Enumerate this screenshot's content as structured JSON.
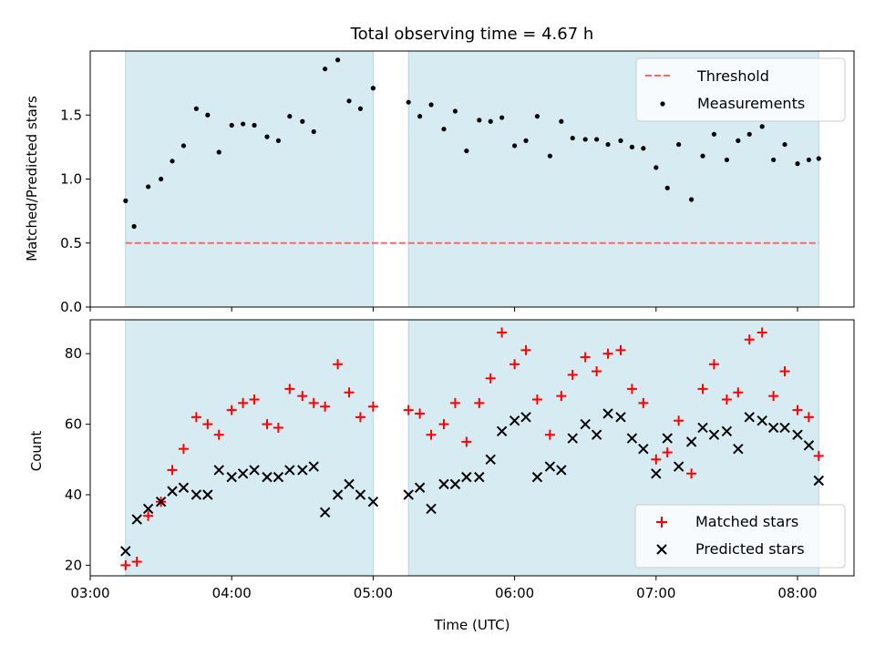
{
  "chart_data": [
    {
      "type": "scatter",
      "title": "Total observing time = 4.67 h",
      "ylabel": "Matched/Predicted stars",
      "xlabel": "",
      "xlim": [
        3.0,
        8.4
      ],
      "ylim": [
        0,
        2.0
      ],
      "yticks": [
        0.0,
        0.5,
        1.0,
        1.5
      ],
      "ytick_labels": [
        "0.0",
        "0.5",
        "1.0",
        "1.5"
      ],
      "xticks": [
        3,
        4,
        5,
        6,
        7,
        8
      ],
      "shaded_intervals": [
        [
          3.25,
          5.0
        ],
        [
          5.25,
          8.15
        ]
      ],
      "shade_color": "#add8e6",
      "threshold": {
        "name": "Threshold",
        "value": 0.5,
        "x_range": [
          3.25,
          8.15
        ],
        "color": "#ff6666"
      },
      "legend": {
        "placement": "upper right",
        "entries": [
          "Threshold",
          "Measurements"
        ]
      },
      "series": [
        {
          "name": "Measurements",
          "color": "#000000",
          "x": [
            3.25,
            3.31,
            3.41,
            3.5,
            3.58,
            3.66,
            3.75,
            3.83,
            3.91,
            4.0,
            4.08,
            4.16,
            4.25,
            4.33,
            4.41,
            4.5,
            4.58,
            4.66,
            4.75,
            4.83,
            4.91,
            5.0,
            5.25,
            5.33,
            5.41,
            5.5,
            5.58,
            5.66,
            5.75,
            5.83,
            5.91,
            6.0,
            6.08,
            6.16,
            6.25,
            6.33,
            6.41,
            6.5,
            6.58,
            6.66,
            6.75,
            6.83,
            6.91,
            7.0,
            7.08,
            7.16,
            7.25,
            7.33,
            7.41,
            7.5,
            7.58,
            7.66,
            7.75,
            7.83,
            7.91,
            8.0,
            8.08,
            8.15
          ],
          "y": [
            0.83,
            0.63,
            0.94,
            1.0,
            1.14,
            1.26,
            1.55,
            1.5,
            1.21,
            1.42,
            1.43,
            1.42,
            1.33,
            1.3,
            1.49,
            1.45,
            1.37,
            1.86,
            1.93,
            1.61,
            1.55,
            1.71,
            1.6,
            1.49,
            1.58,
            1.39,
            1.53,
            1.22,
            1.46,
            1.45,
            1.48,
            1.26,
            1.3,
            1.49,
            1.18,
            1.45,
            1.32,
            1.31,
            1.31,
            1.27,
            1.3,
            1.25,
            1.24,
            1.09,
            0.93,
            1.27,
            0.84,
            1.18,
            1.35,
            1.15,
            1.3,
            1.35,
            1.41,
            1.15,
            1.27,
            1.12,
            1.15,
            1.16
          ]
        }
      ]
    },
    {
      "type": "scatter",
      "title": "",
      "xlabel": "Time (UTC)",
      "ylabel": "Count",
      "xlim": [
        3.0,
        8.4
      ],
      "ylim": [
        17,
        90
      ],
      "yticks": [
        20,
        40,
        60,
        80
      ],
      "ytick_labels": [
        "20",
        "40",
        "60",
        "80"
      ],
      "xticks": [
        3,
        4,
        5,
        6,
        7,
        8
      ],
      "xtick_labels": [
        "03:00",
        "04:00",
        "05:00",
        "06:00",
        "07:00",
        "08:00"
      ],
      "shaded_intervals": [
        [
          3.25,
          5.0
        ],
        [
          5.25,
          8.15
        ]
      ],
      "shade_color": "#add8e6",
      "legend": {
        "placement": "lower right",
        "entries": [
          "Matched stars",
          "Predicted stars"
        ]
      },
      "series": [
        {
          "name": "Matched stars",
          "marker": "+",
          "color": "#ff0000",
          "x": [
            3.25,
            3.33,
            3.41,
            3.5,
            3.58,
            3.66,
            3.75,
            3.83,
            3.91,
            4.0,
            4.08,
            4.16,
            4.25,
            4.33,
            4.41,
            4.5,
            4.58,
            4.66,
            4.75,
            4.83,
            4.91,
            5.0,
            5.25,
            5.33,
            5.41,
            5.5,
            5.58,
            5.66,
            5.75,
            5.83,
            5.91,
            6.0,
            6.08,
            6.16,
            6.25,
            6.33,
            6.41,
            6.5,
            6.58,
            6.66,
            6.75,
            6.83,
            6.91,
            7.0,
            7.08,
            7.16,
            7.25,
            7.33,
            7.41,
            7.5,
            7.58,
            7.66,
            7.75,
            7.83,
            7.91,
            8.0,
            8.08,
            8.15
          ],
          "y": [
            20,
            21,
            34,
            38,
            47,
            53,
            62,
            60,
            57,
            64,
            66,
            67,
            60,
            59,
            70,
            68,
            66,
            65,
            77,
            69,
            62,
            65,
            64,
            63,
            57,
            60,
            66,
            55,
            66,
            73,
            86,
            77,
            81,
            67,
            57,
            68,
            74,
            79,
            75,
            80,
            81,
            70,
            66,
            50,
            52,
            61,
            46,
            70,
            77,
            67,
            69,
            84,
            86,
            68,
            75,
            64,
            62,
            51
          ]
        },
        {
          "name": "Predicted stars",
          "marker": "x",
          "color": "#000000",
          "x": [
            3.25,
            3.33,
            3.41,
            3.5,
            3.58,
            3.66,
            3.75,
            3.83,
            3.91,
            4.0,
            4.08,
            4.16,
            4.25,
            4.33,
            4.41,
            4.5,
            4.58,
            4.66,
            4.75,
            4.83,
            4.91,
            5.0,
            5.25,
            5.33,
            5.41,
            5.5,
            5.58,
            5.66,
            5.75,
            5.83,
            5.91,
            6.0,
            6.08,
            6.16,
            6.25,
            6.33,
            6.41,
            6.5,
            6.58,
            6.66,
            6.75,
            6.83,
            6.91,
            7.0,
            7.08,
            7.16,
            7.25,
            7.33,
            7.41,
            7.5,
            7.58,
            7.66,
            7.75,
            7.83,
            7.91,
            8.0,
            8.08,
            8.15
          ],
          "y": [
            24,
            33,
            36,
            38,
            41,
            42,
            40,
            40,
            47,
            45,
            46,
            47,
            45,
            45,
            47,
            47,
            48,
            35,
            40,
            43,
            40,
            38,
            40,
            42,
            36,
            43,
            43,
            45,
            45,
            50,
            58,
            61,
            62,
            45,
            48,
            47,
            56,
            60,
            57,
            63,
            62,
            56,
            53,
            46,
            56,
            48,
            55,
            59,
            57,
            58,
            53,
            62,
            61,
            59,
            59,
            57,
            54,
            44
          ]
        }
      ]
    }
  ]
}
